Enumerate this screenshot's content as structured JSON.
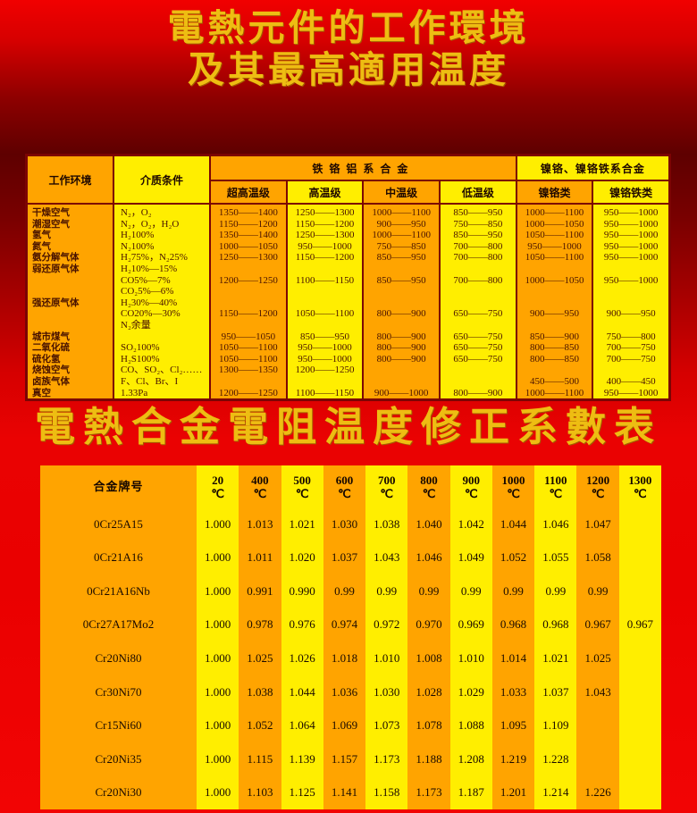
{
  "page": {
    "title1_line1": "電熱元件的工作環境",
    "title1_line2": "及其最高適用温度",
    "title2": "電熱合金電阻温度修正系數表"
  },
  "colors": {
    "background_red_bright": "#f10000",
    "background_red_dark": "#5e0000",
    "cell_orange": "#ffa400",
    "cell_yellow": "#ffee00",
    "grid_maroon": "#7c0404",
    "title_gold": "#eebd12",
    "table1_text": "#481200",
    "table2_text": "#1a0a00"
  },
  "table1": {
    "header": {
      "col_env": "工作环境",
      "col_medium": "介质条件",
      "group_fecral": "铁铬铝系合金",
      "group_nicr": "镍铬、镍铬铁系合金",
      "sub": [
        "超高温级",
        "高温级",
        "中温级",
        "低温级",
        "镍铬类",
        "镍铬铁类"
      ]
    },
    "lines": [
      [
        "干燥空气",
        "N₂，O₂",
        "1350——1400",
        "1250——1300",
        "1000——1100",
        "850——950",
        "1000——1100",
        "950——1000"
      ],
      [
        "潮湿空气",
        "N₂，O₂，H₂O",
        "1150——1200",
        "1150——1200",
        "900——950",
        "750——850",
        "1000——1050",
        "950——1000"
      ],
      [
        "氢气",
        "H₂100%",
        "1350——1400",
        "1250——1300",
        "1000——1100",
        "850——950",
        "1050——1100",
        "950——1000"
      ],
      [
        "氮气",
        "N₂100%",
        "1000——1050",
        "950——1000",
        "750——850",
        "700——800",
        "950——1000",
        "950——1000"
      ],
      [
        "氨分解气体",
        "H₂75%，N₂25%",
        "1250——1300",
        "1150——1200",
        "850——950",
        "700——800",
        "1050——1100",
        "950——1000"
      ],
      [
        "弱还原气体",
        "H₂10%—15%",
        "",
        "",
        "",
        "",
        "",
        ""
      ],
      [
        "",
        "CO5%—7%",
        "1200——1250",
        "1100——1150",
        "850——950",
        "700——800",
        "1000——1050",
        "950——1000"
      ],
      [
        "",
        "CO₂5%—6%",
        "",
        "",
        "",
        "",
        "",
        ""
      ],
      [
        "强还原气体",
        "H₂30%—40%",
        "",
        "",
        "",
        "",
        "",
        ""
      ],
      [
        "",
        "CO20%—30%",
        "1150——1200",
        "1050——1100",
        "800——900",
        "650——750",
        "900——950",
        "900——950"
      ],
      [
        "",
        "N₂余量",
        "",
        "",
        "",
        "",
        "",
        ""
      ],
      [
        "城市煤气",
        "",
        "950——1050",
        "850——950",
        "800——900",
        "650——750",
        "850——900",
        "750——800"
      ],
      [
        "二氧化硫",
        "SO₂100%",
        "1050——1100",
        "950——1000",
        "800——900",
        "650——750",
        "800——850",
        "700——750"
      ],
      [
        "硫化氢",
        "H₂S100%",
        "1050——1100",
        "950——1000",
        "800——900",
        "650——750",
        "800——850",
        "700——750"
      ],
      [
        "烧蚀空气",
        "CO、SO₂、Cl₂……",
        "1300——1350",
        "1200——1250",
        "",
        "",
        "",
        ""
      ],
      [
        "卤族气体",
        "F、Cl、Br、I",
        "",
        "",
        "",
        "",
        "450——500",
        "400——450"
      ],
      [
        "真空",
        "1.33Pa",
        "1200——1250",
        "1100——1150",
        "900——1000",
        "800——900",
        "1000——1100",
        "950——1000"
      ]
    ]
  },
  "table2": {
    "grade_header": "合金牌号",
    "temp_unit": "℃",
    "temps": [
      "20",
      "400",
      "500",
      "600",
      "700",
      "800",
      "900",
      "1000",
      "1100",
      "1200",
      "1300"
    ],
    "rows": [
      {
        "grade": "0Cr25A15",
        "values": [
          "1.000",
          "1.013",
          "1.021",
          "1.030",
          "1.038",
          "1.040",
          "1.042",
          "1.044",
          "1.046",
          "1.047",
          ""
        ]
      },
      {
        "grade": "0Cr21A16",
        "values": [
          "1.000",
          "1.011",
          "1.020",
          "1.037",
          "1.043",
          "1.046",
          "1.049",
          "1.052",
          "1.055",
          "1.058",
          ""
        ]
      },
      {
        "grade": "0Cr21A16Nb",
        "values": [
          "1.000",
          "0.991",
          "0.990",
          "0.99",
          "0.99",
          "0.99",
          "0.99",
          "0.99",
          "0.99",
          "0.99",
          ""
        ]
      },
      {
        "grade": "0Cr27A17Mo2",
        "values": [
          "1.000",
          "0.978",
          "0.976",
          "0.974",
          "0.972",
          "0.970",
          "0.969",
          "0.968",
          "0.968",
          "0.967",
          "0.967"
        ]
      },
      {
        "grade": "Cr20Ni80",
        "values": [
          "1.000",
          "1.025",
          "1.026",
          "1.018",
          "1.010",
          "1.008",
          "1.010",
          "1.014",
          "1.021",
          "1.025",
          ""
        ]
      },
      {
        "grade": "Cr30Ni70",
        "values": [
          "1.000",
          "1.038",
          "1.044",
          "1.036",
          "1.030",
          "1.028",
          "1.029",
          "1.033",
          "1.037",
          "1.043",
          ""
        ]
      },
      {
        "grade": "Cr15Ni60",
        "values": [
          "1.000",
          "1.052",
          "1.064",
          "1.069",
          "1.073",
          "1.078",
          "1.088",
          "1.095",
          "1.109",
          "",
          ""
        ]
      },
      {
        "grade": "Cr20Ni35",
        "values": [
          "1.000",
          "1.115",
          "1.139",
          "1.157",
          "1.173",
          "1.188",
          "1.208",
          "1.219",
          "1.228",
          "",
          ""
        ]
      },
      {
        "grade": "Cr20Ni30",
        "values": [
          "1.000",
          "1.103",
          "1.125",
          "1.141",
          "1.158",
          "1.173",
          "1.187",
          "1.201",
          "1.214",
          "1.226",
          ""
        ]
      }
    ]
  }
}
